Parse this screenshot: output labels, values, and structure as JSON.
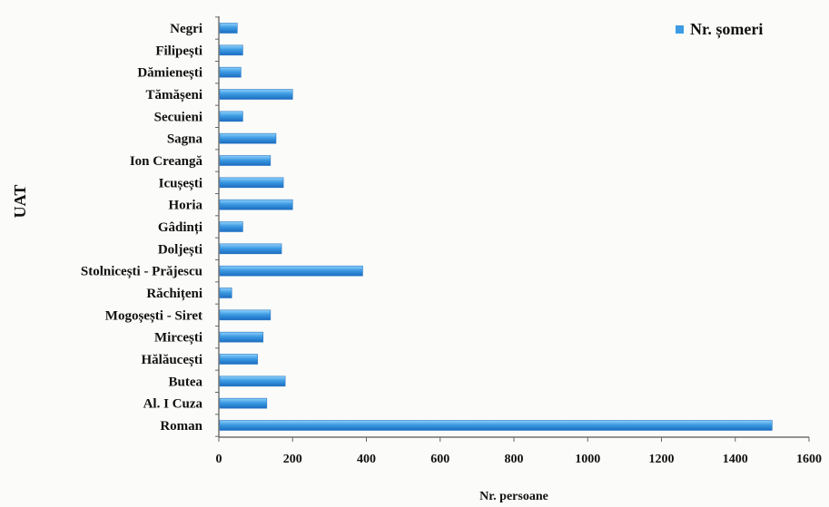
{
  "chart_data": {
    "type": "bar",
    "orientation": "horizontal",
    "title": "",
    "xlabel": "Nr. persoane",
    "ylabel": "UAT",
    "xlim": [
      0,
      1600
    ],
    "xticks": [
      0,
      200,
      400,
      600,
      800,
      1000,
      1200,
      1400,
      1600
    ],
    "grid": false,
    "legend_position": "top-right",
    "categories": [
      "Negri",
      "Filipești",
      "Dămienești",
      "Tămășeni",
      "Secuieni",
      "Sagna",
      "Ion Creangă",
      "Icușești",
      "Horia",
      "Gâdinți",
      "Doljești",
      "Stolnicești - Prăjescu",
      "Răchițeni",
      "Mogoșești - Siret",
      "Mircești",
      "Hălăucești",
      "Butea",
      "Al. I Cuza",
      "Roman"
    ],
    "series": [
      {
        "name": "Nr. șomeri",
        "color": "#3d9be3",
        "values": [
          50,
          65,
          60,
          200,
          65,
          155,
          140,
          175,
          200,
          65,
          170,
          390,
          35,
          140,
          120,
          105,
          180,
          130,
          1500
        ]
      }
    ]
  }
}
